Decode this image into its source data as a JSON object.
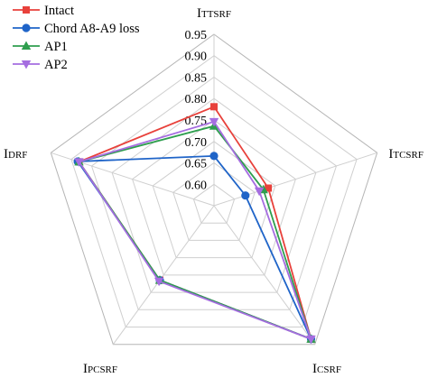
{
  "chart_data": {
    "type": "radar",
    "axes": [
      {
        "label": "ITTSRF",
        "first": "I",
        "rest": "TTSRF"
      },
      {
        "label": "ITCSRF",
        "first": "I",
        "rest": "TCSRF"
      },
      {
        "label": "ICSRF",
        "first": "I",
        "rest": "CSRF"
      },
      {
        "label": "IPCSRF",
        "first": "I",
        "rest": "PCSRF"
      },
      {
        "label": "IDRF",
        "first": "I",
        "rest": "DRF"
      }
    ],
    "r_min": 0.55,
    "r_max": 0.95,
    "ticks": [
      "0.60",
      "0.65",
      "0.70",
      "0.75",
      "0.80",
      "0.85",
      "0.90",
      "0.95"
    ],
    "tick_values": [
      0.6,
      0.65,
      0.7,
      0.75,
      0.8,
      0.85,
      0.9,
      0.95
    ],
    "grid": true,
    "legend_position": "top-left",
    "series": [
      {
        "name": "Intact",
        "color": "#e8413b",
        "marker": "square",
        "values": [
          0.781,
          0.683,
          0.935,
          0.765,
          0.881
        ]
      },
      {
        "name": "Chord A8-A9 loss",
        "color": "#1f64c8",
        "marker": "circle",
        "values": [
          0.666,
          0.627,
          0.935,
          0.765,
          0.884
        ]
      },
      {
        "name": "AP1",
        "color": "#2e9e4e",
        "marker": "triangle-up",
        "values": [
          0.736,
          0.671,
          0.935,
          0.765,
          0.881
        ]
      },
      {
        "name": "AP2",
        "color": "#a56de0",
        "marker": "triangle-down",
        "values": [
          0.746,
          0.661,
          0.935,
          0.768,
          0.881
        ]
      }
    ]
  }
}
